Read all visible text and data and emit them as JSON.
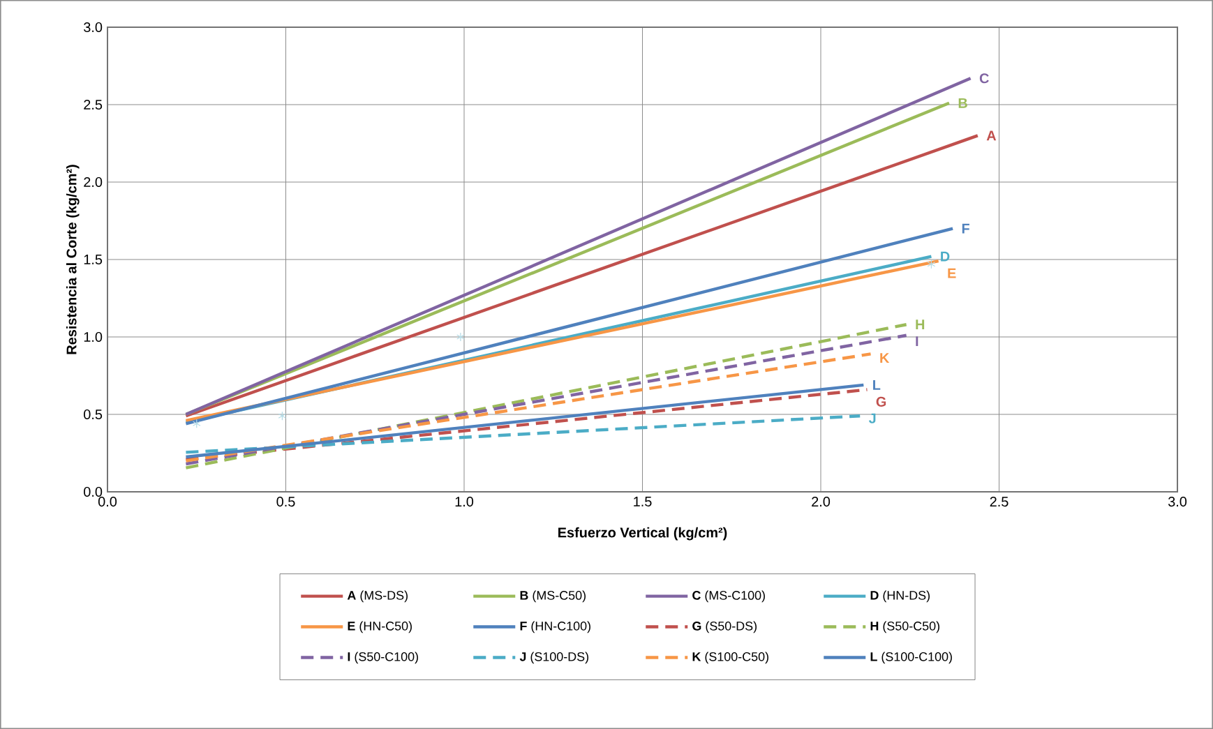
{
  "chart_data": {
    "type": "line",
    "xlabel": "Esfuerzo Vertical (kg/cm²)",
    "ylabel": "Resistencia al Corte  (kg/cm²)",
    "xlim": [
      0,
      3
    ],
    "ylim": [
      0,
      3
    ],
    "xticks": [
      {
        "value": 0,
        "label": "0.0"
      },
      0.5,
      {
        "value": 1,
        "label": "1.0"
      },
      1.5,
      {
        "value": 2,
        "label": "2.0"
      },
      2.5,
      {
        "value": 3,
        "label": "3.0"
      }
    ],
    "yticks": [
      {
        "value": 0,
        "label": "0.0"
      },
      0.5,
      {
        "value": 1,
        "label": "1.0"
      },
      1.5,
      {
        "value": 2,
        "label": "2.0"
      },
      2.5,
      {
        "value": 3,
        "label": "3.0"
      }
    ],
    "grid": true,
    "legend": "bottom",
    "marker": "none",
    "series": [
      {
        "name": "**A**   (MS-DS)",
        "color": "#c0504d",
        "x": [
          0.22,
          2.44
        ],
        "values": [
          0.49,
          2.3
        ],
        "line_style": "solid"
      },
      {
        "name": "**B**   (MS-C50)",
        "color": "#9bbb59",
        "x": [
          0.22,
          2.36
        ],
        "values": [
          0.5,
          2.51
        ],
        "line_style": "solid"
      },
      {
        "name": "**C**   (MS-C100)",
        "color": "#8064a2",
        "x": [
          0.22,
          2.42
        ],
        "values": [
          0.5,
          2.67
        ],
        "line_style": "solid"
      },
      {
        "name": "**D**   (HN-DS)",
        "color": "#4bacc6",
        "x": [
          0.22,
          2.31
        ],
        "values": [
          0.45,
          1.52
        ],
        "line_style": "solid"
      },
      {
        "name": "**E**   (HN-C50)",
        "color": "#f79646",
        "x": [
          0.22,
          2.33
        ],
        "values": [
          0.46,
          1.49
        ],
        "line_style": "solid"
      },
      {
        "name": "**F**   (HN-C100)",
        "color": "#4f81bd",
        "x": [
          0.22,
          2.37
        ],
        "values": [
          0.44,
          1.7
        ],
        "line_style": "solid"
      },
      {
        "name": "**G**   (S50-DS)",
        "color": "#c0504d",
        "x": [
          0.22,
          2.13
        ],
        "values": [
          0.21,
          0.66
        ],
        "line_style": "dashed"
      },
      {
        "name": "**H**   (S50-C50)",
        "color": "#9bbb59",
        "x": [
          0.22,
          2.24
        ],
        "values": [
          0.155,
          1.08
        ],
        "line_style": "dashed"
      },
      {
        "name": "**I**   (S50-C100)",
        "color": "#8064a2",
        "x": [
          0.22,
          2.24
        ],
        "values": [
          0.18,
          1.01
        ],
        "line_style": "dashed"
      },
      {
        "name": "**J**   (S100-DS)",
        "color": "#4bacc6",
        "x": [
          0.22,
          2.11
        ],
        "values": [
          0.255,
          0.49
        ],
        "line_style": "dashed"
      },
      {
        "name": "**K**   (S100-C50)",
        "color": "#f79646",
        "x": [
          0.22,
          2.14
        ],
        "values": [
          0.2,
          0.89
        ],
        "line_style": "dashed"
      },
      {
        "name": "**L**   (S100-C100)",
        "color": "#4f81bd",
        "x": [
          0.22,
          2.12
        ],
        "values": [
          0.225,
          0.69
        ],
        "line_style": "solid"
      },
      {
        "type": "scatter",
        "marker": "cross",
        "color": "#b4dbe6",
        "x": [
          0.25,
          0.49,
          0.99,
          2.31
        ],
        "values": [
          0.44,
          0.49,
          1.0,
          1.47
        ]
      }
    ],
    "annotations": [
      {
        "text": "A",
        "x": 2.44,
        "y": 2.3
      },
      {
        "text": "B",
        "x": 2.36,
        "y": 2.51
      },
      {
        "text": "C",
        "x": 2.42,
        "y": 2.67
      },
      {
        "text": "D",
        "x": 2.31,
        "y": 1.52
      },
      {
        "text": "E",
        "x": 2.33,
        "y": 1.49
      },
      {
        "text": "F",
        "x": 2.37,
        "y": 1.7
      },
      {
        "text": "G",
        "x": 2.13,
        "y": 0.66
      },
      {
        "text": "H",
        "x": 2.24,
        "y": 1.08
      },
      {
        "text": "I",
        "x": 2.24,
        "y": 1.01
      },
      {
        "text": "J",
        "x": 2.11,
        "y": 0.49
      },
      {
        "text": "K",
        "x": 2.14,
        "y": 0.89
      },
      {
        "text": "L",
        "x": 2.12,
        "y": 0.69
      }
    ]
  }
}
